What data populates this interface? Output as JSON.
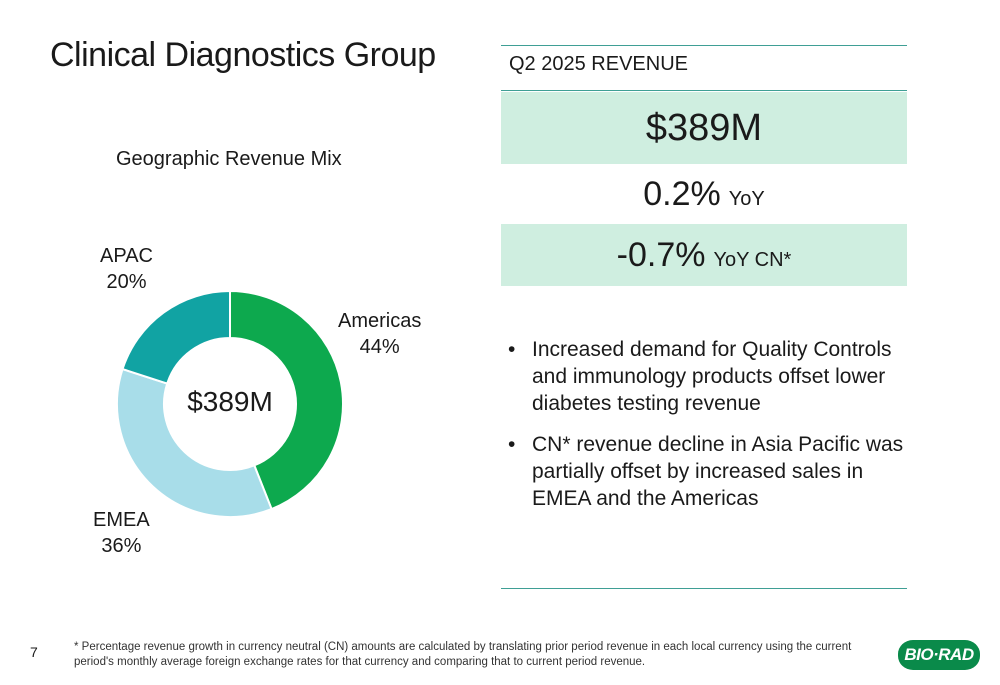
{
  "slide": {
    "title": "Clinical Diagnostics Group",
    "page_number": "7",
    "footnote": "* Percentage revenue growth in currency neutral (CN) amounts are calculated by translating prior period revenue in each local currency using the current period's monthly average foreign exchange rates for that currency and comparing that to current period revenue.",
    "logo_text": "BIO·RAD"
  },
  "revenue": {
    "header": "Q2 2025 REVENUE",
    "total": "$389M",
    "yoy_value": "0.2%",
    "yoy_label": "YoY",
    "cn_value": "-0.7%",
    "cn_label": "YoY CN*"
  },
  "bullets": [
    "Increased demand for Quality Controls and immunology products offset lower diabetes testing revenue",
    "CN* revenue decline in Asia Pacific was partially offset by increased sales in EMEA and the Americas"
  ],
  "chart_data": {
    "type": "pie",
    "subtype": "donut",
    "title": "Geographic Revenue Mix",
    "center_label": "$389M",
    "categories": [
      "Americas",
      "EMEA",
      "APAC"
    ],
    "values": [
      44,
      36,
      20
    ],
    "value_labels": [
      "44%",
      "36%",
      "20%"
    ],
    "colors": [
      "#0da94e",
      "#a8dde9",
      "#11a3a3"
    ]
  }
}
